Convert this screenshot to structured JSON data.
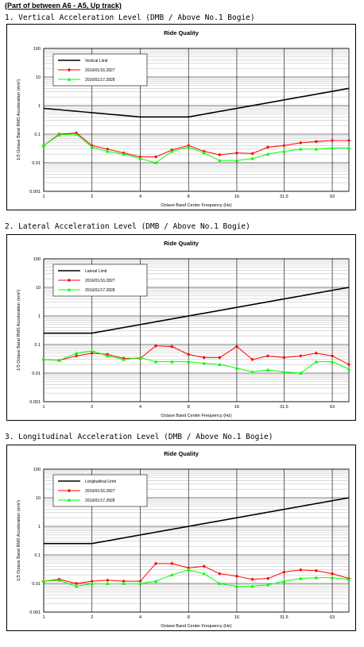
{
  "heading": "(Part of between A6 - A5, Up track)",
  "colors": {
    "limit": "#000000",
    "series1": "#ff0000",
    "series2": "#00ff00"
  },
  "charts": [
    {
      "section_title": "1. Vertical Acceleration Level (DMB / Above No.1 Bogie)",
      "chart_data": {
        "type": "line",
        "title": "Ride Quality",
        "xlabel": "Octave Band Center Frequency (Hz)",
        "ylabel": "1/3 Octave Band RMS Acceleration (m/s²)",
        "y_scale": "log",
        "ylim": [
          0.001,
          100
        ],
        "xlim": [
          1,
          80
        ],
        "x_ticks": [
          "1",
          "2",
          "4",
          "8",
          "16",
          "31.5",
          "63"
        ],
        "y_ticks": [
          "0.001",
          "0.01",
          "0.1",
          "1",
          "10",
          "100"
        ],
        "x": [
          1,
          1.25,
          1.6,
          2,
          2.5,
          3.15,
          4,
          5,
          6.3,
          8,
          10,
          12.5,
          16,
          20,
          25,
          31.5,
          40,
          50,
          63,
          80
        ],
        "limit": {
          "name": "Vertical Limit",
          "x": [
            1,
            4,
            8,
            80
          ],
          "y": [
            0.8,
            0.4,
            0.4,
            4
          ]
        },
        "series": [
          {
            "name": "2016/01/16.2827",
            "values": [
              0.04,
              0.1,
              0.11,
              0.04,
              0.03,
              0.022,
              0.016,
              0.016,
              0.028,
              0.04,
              0.025,
              0.019,
              0.022,
              0.021,
              0.035,
              0.04,
              0.05,
              0.055,
              0.06,
              0.06
            ]
          },
          {
            "name": "2016/01/17.2828",
            "values": [
              0.04,
              0.095,
              0.1,
              0.035,
              0.025,
              0.02,
              0.014,
              0.01,
              0.025,
              0.035,
              0.022,
              0.012,
              0.012,
              0.014,
              0.02,
              0.025,
              0.03,
              0.03,
              0.033,
              0.033
            ]
          }
        ],
        "legend_position": "top-left"
      }
    },
    {
      "section_title": "2. Lateral Acceleration Level (DMB / Above No.1 Bogie)",
      "chart_data": {
        "type": "line",
        "title": "Ride Quality",
        "xlabel": "Octave Band Center Frequency (Hz)",
        "ylabel": "1/3 Octave Band RMS Acceleration (m/s²)",
        "y_scale": "log",
        "ylim": [
          0.001,
          100
        ],
        "xlim": [
          1,
          80
        ],
        "x_ticks": [
          "1",
          "2",
          "4",
          "8",
          "16",
          "31.5",
          "63"
        ],
        "y_ticks": [
          "0.001",
          "0.01",
          "0.1",
          "1",
          "10",
          "100"
        ],
        "x": [
          1,
          1.25,
          1.6,
          2,
          2.5,
          3.15,
          4,
          5,
          6.3,
          8,
          10,
          12.5,
          16,
          20,
          25,
          31.5,
          40,
          50,
          63,
          80
        ],
        "limit": {
          "name": "Lateral Limit",
          "x": [
            1,
            2,
            80
          ],
          "y": [
            0.25,
            0.25,
            10
          ]
        },
        "series": [
          {
            "name": "2016/01/16.2827",
            "values": [
              0.03,
              0.028,
              0.04,
              0.05,
              0.045,
              0.033,
              0.033,
              0.09,
              0.085,
              0.045,
              0.035,
              0.035,
              0.085,
              0.03,
              0.04,
              0.035,
              0.04,
              0.05,
              0.04,
              0.02
            ]
          },
          {
            "name": "2016/01/17.2828",
            "values": [
              0.03,
              0.028,
              0.05,
              0.06,
              0.04,
              0.03,
              0.035,
              0.025,
              0.025,
              0.025,
              0.022,
              0.02,
              0.015,
              0.011,
              0.013,
              0.011,
              0.01,
              0.025,
              0.025,
              0.014
            ]
          }
        ],
        "legend_position": "top-left"
      }
    },
    {
      "section_title": "3. Longitudinal Acceleration Level (DMB / Above No.1 Bogie)",
      "chart_data": {
        "type": "line",
        "title": "Ride Quality",
        "xlabel": "Octave Band Center Frequency (Hz)",
        "ylabel": "1/3 Octave Band RMS Acceleration (m/s²)",
        "y_scale": "log",
        "ylim": [
          0.001,
          100
        ],
        "xlim": [
          1,
          80
        ],
        "x_ticks": [
          "1",
          "2",
          "4",
          "8",
          "16",
          "31.5",
          "63"
        ],
        "y_ticks": [
          "0.001",
          "0.01",
          "0.1",
          "1",
          "10",
          "100"
        ],
        "x": [
          1,
          1.25,
          1.6,
          2,
          2.5,
          3.15,
          4,
          5,
          6.3,
          8,
          10,
          12.5,
          16,
          20,
          25,
          31.5,
          40,
          50,
          63,
          80
        ],
        "limit": {
          "name": "Longitudinal Limit",
          "x": [
            1,
            2,
            80
          ],
          "y": [
            0.25,
            0.25,
            10
          ]
        },
        "series": [
          {
            "name": "2016/01/16.2827",
            "values": [
              0.012,
              0.014,
              0.01,
              0.012,
              0.013,
              0.012,
              0.012,
              0.05,
              0.05,
              0.035,
              0.04,
              0.022,
              0.018,
              0.014,
              0.015,
              0.025,
              0.03,
              0.028,
              0.022,
              0.015
            ]
          },
          {
            "name": "2016/01/17.2828",
            "values": [
              0.012,
              0.013,
              0.008,
              0.01,
              0.01,
              0.01,
              0.01,
              0.012,
              0.02,
              0.03,
              0.022,
              0.01,
              0.008,
              0.008,
              0.009,
              0.012,
              0.015,
              0.016,
              0.016,
              0.014
            ]
          }
        ],
        "legend_position": "top-left"
      }
    }
  ]
}
